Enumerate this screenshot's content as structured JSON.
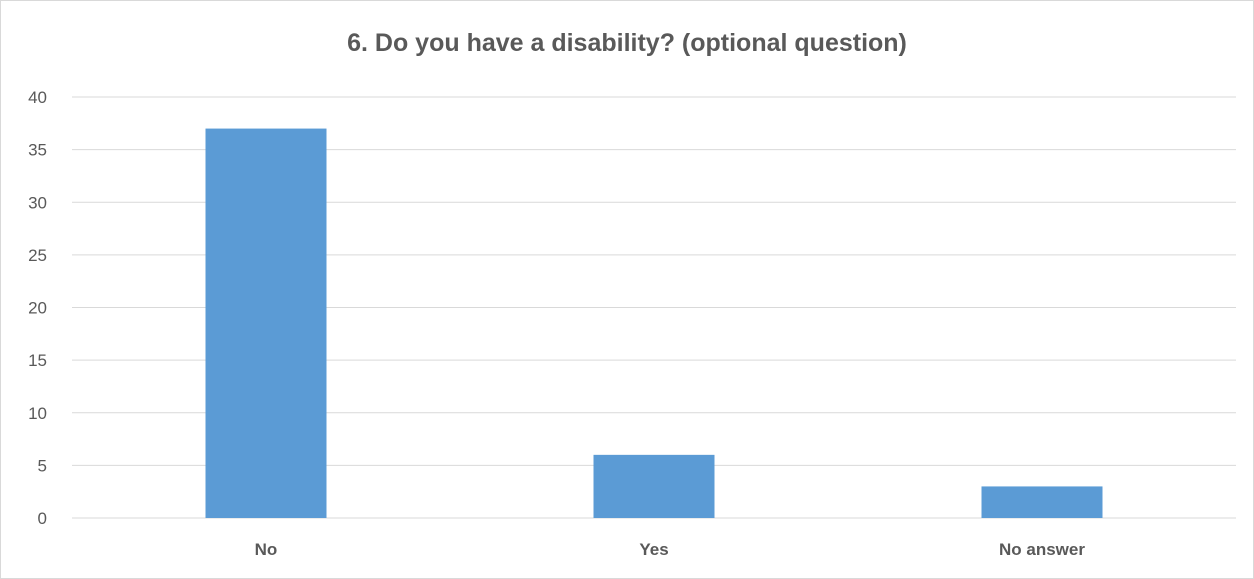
{
  "chart_data": {
    "type": "bar",
    "title": "6. Do you have a disability? (optional question)",
    "categories": [
      "No",
      "Yes",
      "No answer"
    ],
    "values": [
      37,
      6,
      3
    ],
    "ylim": [
      0,
      40
    ],
    "yticks": [
      0,
      5,
      10,
      15,
      20,
      25,
      30,
      35,
      40
    ],
    "xlabel": "",
    "ylabel": "",
    "grid": true,
    "legend": false,
    "bar_color": "#5b9bd5",
    "grid_color": "#d9d9d9",
    "text_color": "#595959"
  }
}
